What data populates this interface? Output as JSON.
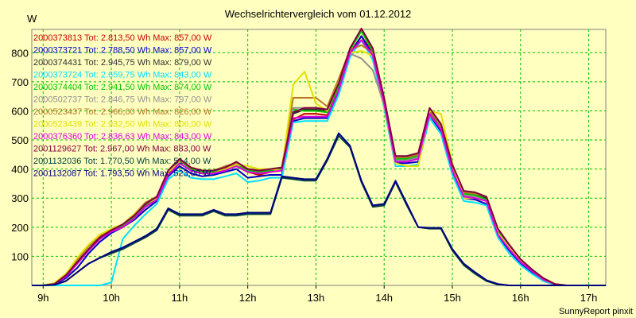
{
  "chart_data": {
    "type": "line",
    "title": "Wechselrichtervergleich vom 01.12.2012",
    "ylabel": "W",
    "xlabel": "",
    "footer": "SunnyReport pinxit",
    "ylim": [
      0,
      880
    ],
    "yticks": [
      100,
      200,
      300,
      400,
      500,
      600,
      700,
      800
    ],
    "xlim": [
      8.8333,
      17.25
    ],
    "xticks": [
      9,
      10,
      11,
      12,
      13,
      14,
      15,
      16,
      17
    ],
    "xtick_labels": [
      "9h",
      "10h",
      "11h",
      "12h",
      "13h",
      "14h",
      "15h",
      "16h",
      "17h"
    ],
    "grid": true,
    "legend_position": "top-left",
    "x": [
      8.8333,
      9.0,
      9.1667,
      9.3333,
      9.5,
      9.6667,
      9.8333,
      10.0,
      10.1667,
      10.3333,
      10.5,
      10.6667,
      10.8333,
      11.0,
      11.1667,
      11.3333,
      11.5,
      11.6667,
      11.8333,
      12.0,
      12.1667,
      12.3333,
      12.5,
      12.6667,
      12.8333,
      13.0,
      13.1667,
      13.3333,
      13.5,
      13.6667,
      13.8333,
      14.0,
      14.1667,
      14.3333,
      14.5,
      14.6667,
      14.8333,
      15.0,
      15.1667,
      15.3333,
      15.5,
      15.6667,
      15.8333,
      16.0,
      16.1667,
      16.3333,
      16.5,
      16.6667,
      16.8333,
      17.0,
      17.1667,
      17.25
    ],
    "series": [
      {
        "name": "2000373813",
        "legend": "2000373813 Tot: 2.813,50 Wh Max: 857,00 W",
        "color": "#c80000",
        "values": [
          0,
          0,
          5,
          30,
          75,
          120,
          160,
          185,
          200,
          230,
          270,
          295,
          380,
          420,
          395,
          385,
          385,
          395,
          410,
          390,
          380,
          390,
          395,
          570,
          590,
          590,
          585,
          670,
          800,
          857,
          800,
          630,
          430,
          430,
          440,
          590,
          540,
          400,
          310,
          305,
          290,
          180,
          130,
          80,
          50,
          20,
          5,
          0,
          0,
          0,
          0,
          0
        ]
      },
      {
        "name": "2000373721",
        "legend": "2000373721 Tot: 2.788,50 Wh Max: 857,00 W",
        "color": "#0000c8",
        "values": [
          0,
          0,
          3,
          25,
          60,
          110,
          150,
          180,
          200,
          225,
          260,
          290,
          375,
          410,
          385,
          375,
          380,
          390,
          400,
          370,
          375,
          380,
          380,
          565,
          575,
          575,
          575,
          665,
          795,
          857,
          790,
          620,
          420,
          420,
          425,
          585,
          530,
          390,
          300,
          295,
          280,
          170,
          120,
          75,
          45,
          15,
          3,
          0,
          0,
          0,
          0,
          0
        ]
      },
      {
        "name": "2000374431",
        "legend": "2000374431 Tot: 2.945,75 Wh Max: 879,00 W",
        "color": "#303030",
        "values": [
          0,
          0,
          5,
          35,
          80,
          125,
          165,
          190,
          210,
          240,
          280,
          305,
          395,
          435,
          405,
          395,
          395,
          405,
          420,
          400,
          395,
          400,
          405,
          590,
          605,
          605,
          600,
          690,
          810,
          879,
          810,
          640,
          440,
          440,
          450,
          605,
          550,
          410,
          320,
          315,
          300,
          190,
          140,
          85,
          55,
          25,
          5,
          0,
          0,
          0,
          0,
          0
        ]
      },
      {
        "name": "2000373724",
        "legend": "2000373724 Tot: 2.659,75 Wh Max: 843,00 W",
        "color": "#00e0ff",
        "values": [
          0,
          0,
          0,
          0,
          0,
          0,
          0,
          10,
          160,
          205,
          245,
          280,
          365,
          395,
          370,
          365,
          365,
          375,
          385,
          355,
          360,
          370,
          370,
          560,
          565,
          565,
          565,
          655,
          785,
          843,
          775,
          610,
          410,
          410,
          415,
          575,
          520,
          380,
          290,
          285,
          275,
          165,
          110,
          70,
          40,
          15,
          3,
          0,
          0,
          0,
          0,
          0
        ]
      },
      {
        "name": "2000374404",
        "legend": "2000374404 Tot: 2.941,50 Wh Max: 874,00 W",
        "color": "#00c800",
        "values": [
          0,
          0,
          5,
          35,
          80,
          125,
          160,
          190,
          205,
          235,
          275,
          300,
          390,
          430,
          400,
          390,
          390,
          400,
          415,
          395,
          390,
          395,
          400,
          605,
          600,
          600,
          595,
          685,
          810,
          874,
          805,
          635,
          435,
          435,
          445,
          600,
          545,
          405,
          315,
          310,
          295,
          185,
          135,
          85,
          55,
          25,
          5,
          0,
          0,
          0,
          0,
          0
        ]
      },
      {
        "name": "2000502737",
        "legend": "2000502737 Tot: 2.846,75 Wh Max: 797,00 W",
        "color": "#909090",
        "values": [
          0,
          0,
          5,
          30,
          75,
          120,
          160,
          185,
          200,
          230,
          270,
          295,
          380,
          420,
          395,
          385,
          385,
          395,
          410,
          390,
          385,
          390,
          395,
          610,
          610,
          610,
          605,
          700,
          797,
          780,
          740,
          620,
          430,
          430,
          440,
          585,
          540,
          400,
          310,
          305,
          290,
          180,
          130,
          80,
          50,
          20,
          5,
          0,
          0,
          0,
          0,
          0
        ]
      },
      {
        "name": "2000523437",
        "legend": "2000523437 Tot: 2.966,00 Wh Max: 826,00 W",
        "color": "#b87820",
        "values": [
          0,
          0,
          8,
          40,
          90,
          135,
          170,
          190,
          210,
          245,
          285,
          305,
          395,
          430,
          405,
          395,
          395,
          410,
          420,
          400,
          395,
          400,
          405,
          645,
          645,
          645,
          615,
          710,
          810,
          826,
          800,
          640,
          440,
          440,
          450,
          600,
          550,
          410,
          320,
          315,
          305,
          195,
          140,
          90,
          55,
          25,
          5,
          0,
          0,
          0,
          0,
          0
        ]
      },
      {
        "name": "2000523439",
        "legend": "2000523439 Tot: 2.932,50 Wh Max: 806,00 W",
        "color": "#e0e000",
        "values": [
          0,
          0,
          8,
          40,
          95,
          140,
          175,
          195,
          210,
          245,
          280,
          300,
          390,
          420,
          395,
          385,
          385,
          400,
          415,
          410,
          400,
          400,
          395,
          690,
          735,
          625,
          600,
          700,
          800,
          806,
          790,
          620,
          420,
          410,
          410,
          600,
          590,
          420,
          300,
          300,
          290,
          180,
          130,
          85,
          50,
          20,
          5,
          0,
          0,
          0,
          0,
          0
        ]
      },
      {
        "name": "2000376360",
        "legend": "2000376360 Tot: 2.836,63 Wh Max: 843,00 W",
        "color": "#e000e0",
        "values": [
          0,
          0,
          5,
          30,
          75,
          120,
          160,
          185,
          200,
          230,
          270,
          295,
          380,
          420,
          395,
          385,
          385,
          395,
          410,
          390,
          385,
          390,
          395,
          575,
          580,
          580,
          580,
          670,
          800,
          843,
          790,
          625,
          425,
          425,
          435,
          590,
          535,
          395,
          305,
          300,
          290,
          175,
          125,
          80,
          50,
          20,
          5,
          0,
          0,
          0,
          0,
          0
        ]
      },
      {
        "name": "2001129627",
        "legend": "2001129627 Tot: 2.967,00 Wh Max: 883,00 W",
        "color": "#800040",
        "values": [
          0,
          0,
          5,
          35,
          80,
          125,
          165,
          190,
          210,
          240,
          280,
          305,
          395,
          435,
          405,
          395,
          395,
          405,
          425,
          400,
          395,
          400,
          405,
          595,
          610,
          610,
          605,
          695,
          815,
          883,
          815,
          645,
          445,
          445,
          455,
          610,
          555,
          415,
          325,
          320,
          305,
          195,
          140,
          90,
          55,
          25,
          5,
          0,
          0,
          0,
          0,
          0
        ]
      },
      {
        "name": "2001132036",
        "legend": "2001132036 Tot: 1.770,50 Wh Max: 514,00 W",
        "color": "#004040",
        "values": [
          0,
          0,
          2,
          15,
          45,
          75,
          95,
          110,
          125,
          145,
          165,
          190,
          260,
          240,
          240,
          240,
          255,
          240,
          240,
          245,
          245,
          245,
          370,
          365,
          360,
          360,
          430,
          514,
          475,
          355,
          270,
          275,
          355,
          275,
          200,
          195,
          195,
          120,
          70,
          40,
          15,
          3,
          0,
          0,
          0,
          0,
          0,
          0,
          0,
          0,
          0,
          0
        ]
      },
      {
        "name": "2001132087",
        "legend": "2001132087 Tot: 1.793,50 Wh Max: 523,00 W",
        "color": "#000080",
        "values": [
          0,
          0,
          2,
          15,
          45,
          75,
          95,
          115,
          130,
          150,
          170,
          195,
          265,
          245,
          245,
          245,
          260,
          245,
          245,
          250,
          250,
          250,
          375,
          370,
          365,
          365,
          435,
          523,
          480,
          360,
          275,
          280,
          360,
          280,
          200,
          198,
          198,
          125,
          75,
          45,
          18,
          5,
          0,
          0,
          0,
          0,
          0,
          0,
          0,
          0,
          0,
          0
        ]
      }
    ]
  }
}
